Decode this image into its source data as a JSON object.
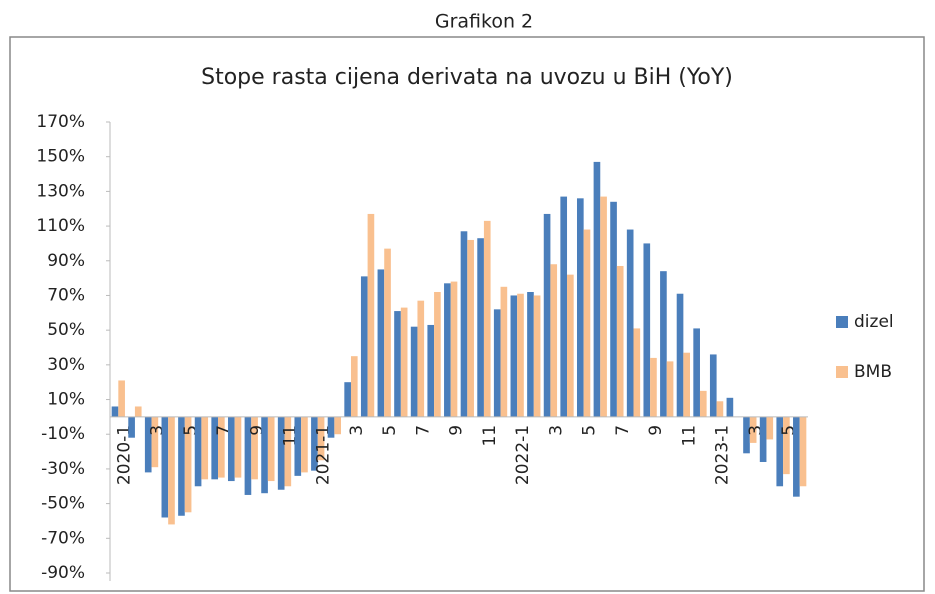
{
  "chart_data": {
    "type": "bar",
    "header": "Grafikon 2",
    "title": "Stope rasta cijena derivata na uvozu u BiH (YoY)",
    "categories": [
      "2020-1",
      null,
      "3",
      null,
      "5",
      null,
      "7",
      null,
      "9",
      null,
      "11",
      null,
      "2021-1",
      null,
      "3",
      null,
      "5",
      null,
      "7",
      null,
      "9",
      null,
      "11",
      null,
      "2022-1",
      null,
      "3",
      null,
      "5",
      null,
      "7",
      null,
      "9",
      null,
      "11",
      null,
      "2023-1",
      null,
      "3",
      null,
      "5",
      null
    ],
    "series": [
      {
        "name": "dizel",
        "color": "#4a7ebb",
        "values": [
          6,
          -12,
          -32,
          -58,
          -57,
          -40,
          -36,
          -37,
          -45,
          -44,
          -42,
          -34,
          -31,
          -12,
          20,
          81,
          85,
          61,
          52,
          53,
          77,
          107,
          103,
          62,
          70,
          72,
          117,
          127,
          126,
          147,
          124,
          108,
          100,
          84,
          71,
          51,
          36,
          11,
          -21,
          -26,
          -40,
          -46
        ]
      },
      {
        "name": "BMB",
        "color": "#f9c08f",
        "values": [
          21,
          6,
          -29,
          -62,
          -55,
          -36,
          -35,
          -35,
          -36,
          -37,
          -40,
          -32,
          -25,
          -10,
          35,
          117,
          97,
          63,
          67,
          72,
          78,
          102,
          113,
          75,
          71,
          70,
          88,
          82,
          108,
          127,
          87,
          51,
          34,
          32,
          37,
          15,
          9,
          null,
          -15,
          -13,
          -33,
          -40
        ]
      }
    ],
    "ylim": [
      -90,
      170
    ],
    "yticks": [
      {
        "value": -90,
        "label": "-90%"
      },
      {
        "value": -70,
        "label": "-70%"
      },
      {
        "value": -50,
        "label": "-50%"
      },
      {
        "value": -30,
        "label": "-30%"
      },
      {
        "value": -10,
        "label": "-10%"
      },
      {
        "value": 10,
        "label": "10%"
      },
      {
        "value": 30,
        "label": "30%"
      },
      {
        "value": 50,
        "label": "50%"
      },
      {
        "value": 70,
        "label": "70%"
      },
      {
        "value": 90,
        "label": "90%"
      },
      {
        "value": 110,
        "label": "110%"
      },
      {
        "value": 130,
        "label": "130%"
      },
      {
        "value": 150,
        "label": "150%"
      },
      {
        "value": 170,
        "label": "170%"
      }
    ],
    "grid": false,
    "legend": "right"
  }
}
